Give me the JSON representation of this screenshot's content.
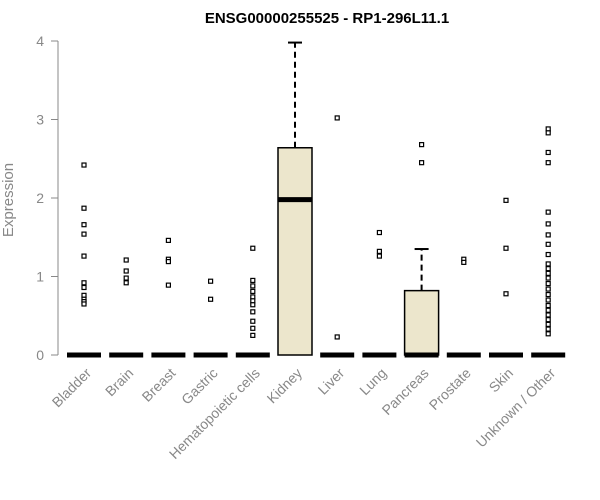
{
  "chart_data": {
    "type": "box",
    "title": "ENSG00000255525 - RP1-296L11.1",
    "xlabel": "",
    "ylabel": "Expression",
    "ylim": [
      0,
      4
    ],
    "yticks": [
      0,
      1,
      2,
      3,
      4
    ],
    "grid": false,
    "legend": "none",
    "colors": {
      "box_fill": "#ece6cc",
      "stroke": "#000000",
      "axis": "#888888",
      "title": "#000000"
    },
    "categories": [
      "Bladder",
      "Brain",
      "Breast",
      "Gastric",
      "Hematopoietic cells",
      "Kidney",
      "Liver",
      "Lung",
      "Pancreas",
      "Prostate",
      "Skin",
      "Unknown / Other"
    ],
    "boxes": [
      {
        "category": "Bladder",
        "whisker_low": 0,
        "q1": 0,
        "median": 0,
        "q3": 0,
        "whisker_high": 0,
        "outliers": [
          2.42,
          1.87,
          1.66,
          1.54,
          1.26,
          0.92,
          0.86,
          0.76,
          0.71,
          0.68,
          0.65
        ]
      },
      {
        "category": "Brain",
        "whisker_low": 0,
        "q1": 0,
        "median": 0,
        "q3": 0,
        "whisker_high": 0,
        "outliers": [
          1.21,
          1.07,
          0.98,
          0.92
        ]
      },
      {
        "category": "Breast",
        "whisker_low": 0,
        "q1": 0,
        "median": 0,
        "q3": 0,
        "whisker_high": 0,
        "outliers": [
          1.46,
          1.22,
          1.19,
          0.89
        ]
      },
      {
        "category": "Gastric",
        "whisker_low": 0,
        "q1": 0,
        "median": 0,
        "q3": 0,
        "whisker_high": 0,
        "outliers": [
          0.94,
          0.71
        ]
      },
      {
        "category": "Hematopoietic cells",
        "whisker_low": 0,
        "q1": 0,
        "median": 0,
        "q3": 0,
        "whisker_high": 0,
        "outliers": [
          1.36,
          0.95,
          0.88,
          0.81,
          0.74,
          0.69,
          0.64,
          0.55,
          0.43,
          0.34,
          0.25
        ]
      },
      {
        "category": "Kidney",
        "whisker_low": 0,
        "q1": 0,
        "median": 1.98,
        "q3": 2.64,
        "whisker_high": 3.98,
        "outliers": []
      },
      {
        "category": "Liver",
        "whisker_low": 0,
        "q1": 0,
        "median": 0,
        "q3": 0,
        "whisker_high": 0,
        "outliers": [
          3.02,
          0.23
        ]
      },
      {
        "category": "Lung",
        "whisker_low": 0,
        "q1": 0,
        "median": 0,
        "q3": 0,
        "whisker_high": 0,
        "outliers": [
          1.56,
          1.32,
          1.26
        ]
      },
      {
        "category": "Pancreas",
        "whisker_low": 0,
        "q1": 0,
        "median": 0,
        "q3": 0.82,
        "whisker_high": 1.35,
        "outliers": [
          2.68,
          2.45
        ]
      },
      {
        "category": "Prostate",
        "whisker_low": 0,
        "q1": 0,
        "median": 0,
        "q3": 0,
        "whisker_high": 0,
        "outliers": [
          1.22,
          1.18
        ]
      },
      {
        "category": "Skin",
        "whisker_low": 0,
        "q1": 0,
        "median": 0,
        "q3": 0,
        "whisker_high": 0,
        "outliers": [
          1.97,
          1.36,
          0.78
        ]
      },
      {
        "category": "Unknown / Other",
        "whisker_low": 0,
        "q1": 0,
        "median": 0,
        "q3": 0,
        "whisker_high": 0,
        "outliers": [
          2.88,
          2.83,
          2.58,
          2.45,
          1.82,
          1.67,
          1.53,
          1.41,
          1.28,
          1.16,
          1.1,
          1.04,
          0.98,
          0.91,
          0.84,
          0.77,
          0.7,
          0.63,
          0.57,
          0.51,
          0.45,
          0.39,
          0.33,
          0.27
        ]
      }
    ]
  }
}
